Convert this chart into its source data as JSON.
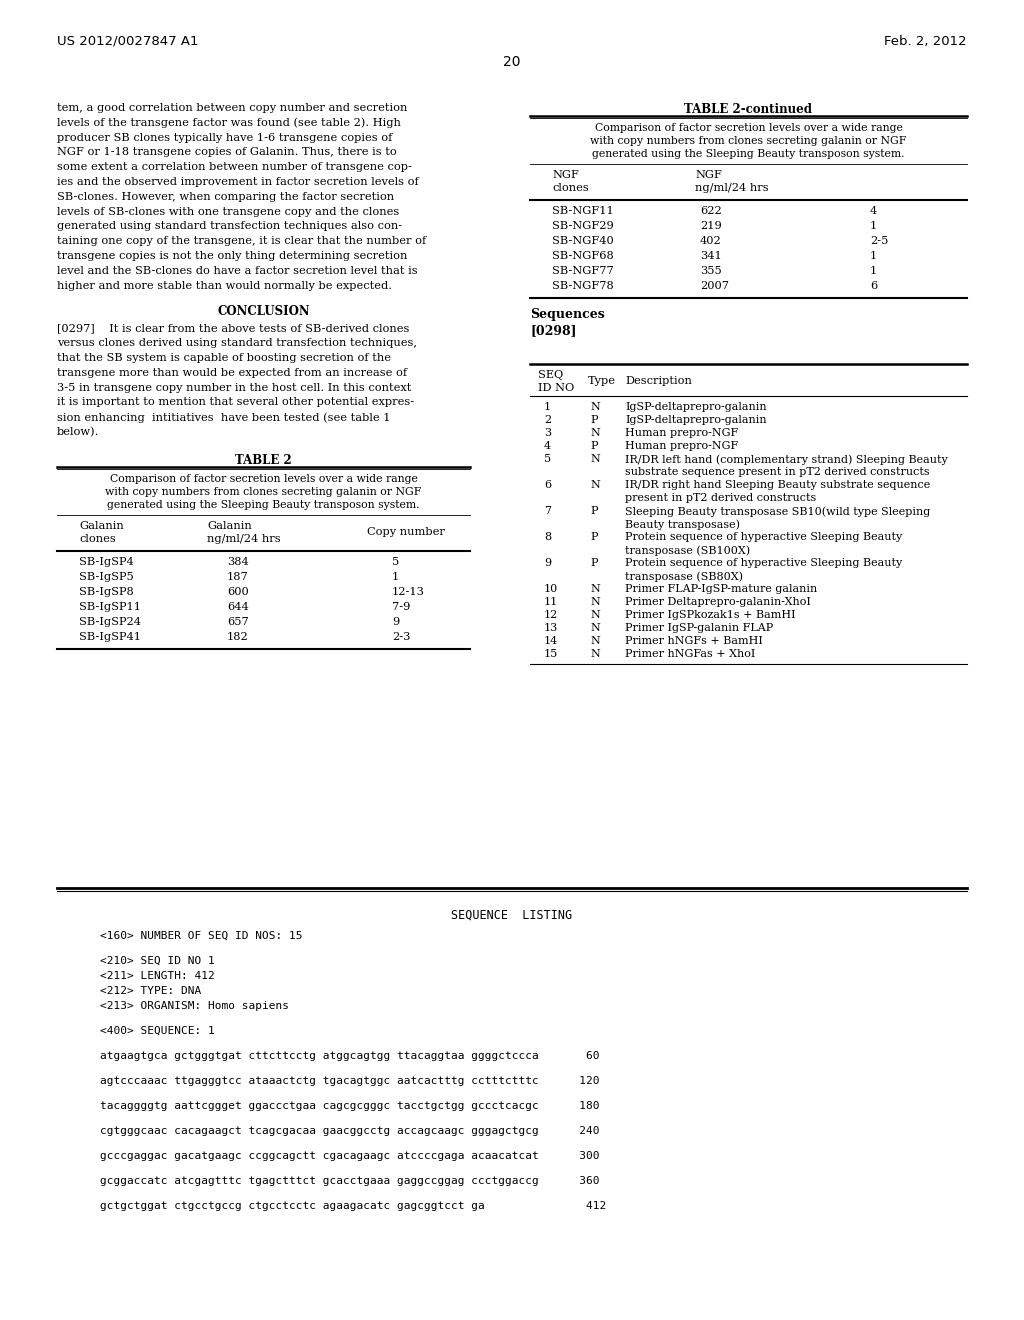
{
  "header_left": "US 2012/0027847 A1",
  "header_right": "Feb. 2, 2012",
  "page_number": "20",
  "bg_color": "#ffffff",
  "left_col_lines": [
    "tem, a good correlation between copy number and secretion",
    "levels of the transgene factor was found (see table 2). High",
    "producer SB clones typically have 1-6 transgene copies of",
    "NGF or 1-18 transgene copies of Galanin. Thus, there is to",
    "some extent a correlation between number of transgene cop-",
    "ies and the observed improvement in factor secretion levels of",
    "SB-clones. However, when comparing the factor secretion",
    "levels of SB-clones with one transgene copy and the clones",
    "generated using standard transfection techniques also con-",
    "taining one copy of the transgene, it is clear that the number of",
    "transgene copies is not the only thing determining secretion",
    "level and the SB-clones do have a factor secretion level that is",
    "higher and more stable than would normally be expected."
  ],
  "conclusion_title": "CONCLUSION",
  "conclusion_lines": [
    "[0297]    It is clear from the above tests of SB-derived clones",
    "versus clones derived using standard transfection techniques,",
    "that the SB system is capable of boosting secretion of the",
    "transgene more than would be expected from an increase of",
    "3-5 in transgene copy number in the host cell. In this context",
    "it is important to mention that several other potential expres-",
    "sion enhancing  intitiatives  have been tested (see table 1",
    "below)."
  ],
  "table2_title": "TABLE 2",
  "table2_caption_lines": [
    "Comparison of factor secretion levels over a wide range",
    "with copy numbers from clones secreting galanin or NGF",
    "generated using the Sleeping Beauty transposon system."
  ],
  "table2_col1": "Galanin",
  "table2_col1b": "clones",
  "table2_col2": "Galanin",
  "table2_col2b": "ng/ml/24 hrs",
  "table2_col3": "Copy number",
  "table2_data": [
    [
      "SB-IgSP4",
      "384",
      "5"
    ],
    [
      "SB-IgSP5",
      "187",
      "1"
    ],
    [
      "SB-IgSP8",
      "600",
      "12-13"
    ],
    [
      "SB-IgSP11",
      "644",
      "7-9"
    ],
    [
      "SB-IgSP24",
      "657",
      "9"
    ],
    [
      "SB-IgSP41",
      "182",
      "2-3"
    ]
  ],
  "table2cont_title": "TABLE 2-continued",
  "table2cont_caption_lines": [
    "Comparison of factor secretion levels over a wide range",
    "with copy numbers from clones secreting galanin or NGF",
    "generated using the Sleeping Beauty transposon system."
  ],
  "table2cont_col1": "NGF",
  "table2cont_col1b": "clones",
  "table2cont_col2": "NGF",
  "table2cont_col2b": "ng/ml/24 hrs",
  "table2cont_data": [
    [
      "SB-NGF11",
      "622",
      "4"
    ],
    [
      "SB-NGF29",
      "219",
      "1"
    ],
    [
      "SB-NGF40",
      "402",
      "2-5"
    ],
    [
      "SB-NGF68",
      "341",
      "1"
    ],
    [
      "SB-NGF77",
      "355",
      "1"
    ],
    [
      "SB-NGF78",
      "2007",
      "6"
    ]
  ],
  "sequences_label": "Sequences",
  "sequences_para": "[0298]",
  "seq_table_data": [
    [
      "1",
      "N",
      "IgSP-deltaprepro-galanin",
      ""
    ],
    [
      "2",
      "P",
      "IgSP-deltaprepro-galanin",
      ""
    ],
    [
      "3",
      "N",
      "Human prepro-NGF",
      ""
    ],
    [
      "4",
      "P",
      "Human prepro-NGF",
      ""
    ],
    [
      "5",
      "N",
      "IR/DR left hand (complementary strand) Sleeping Beauty",
      "substrate sequence present in pT2 derived constructs"
    ],
    [
      "6",
      "N",
      "IR/DR right hand Sleeping Beauty substrate sequence",
      "present in pT2 derived constructs"
    ],
    [
      "7",
      "P",
      "Sleeping Beauty transposase SB10(wild type Sleeping",
      "Beauty transposase)"
    ],
    [
      "8",
      "P",
      "Protein sequence of hyperactive Sleeping Beauty",
      "transposase (SB100X)"
    ],
    [
      "9",
      "P",
      "Protein sequence of hyperactive Sleeping Beauty",
      "transposase (SB80X)"
    ],
    [
      "10",
      "N",
      "Primer FLAP-IgSP-mature galanin",
      ""
    ],
    [
      "11",
      "N",
      "Primer Deltaprepro-galanin-XhoI",
      ""
    ],
    [
      "12",
      "N",
      "Primer IgSPkozak1s + BamHI",
      ""
    ],
    [
      "13",
      "N",
      "Primer IgSP-galanin FLAP",
      ""
    ],
    [
      "14",
      "N",
      "Primer hNGFs + BamHI",
      ""
    ],
    [
      "15",
      "N",
      "Primer hNGFas + XhoI",
      ""
    ]
  ],
  "seq_listing_title": "SEQUENCE  LISTING",
  "seq_listing_lines": [
    "<160> NUMBER OF SEQ ID NOS: 15",
    "",
    "<210> SEQ ID NO 1",
    "<211> LENGTH: 412",
    "<212> TYPE: DNA",
    "<213> ORGANISM: Homo sapiens",
    "",
    "<400> SEQUENCE: 1",
    "",
    "atgaagtgca gctgggtgat cttcttcctg atggcagtgg ttacaggtaa ggggctccca       60",
    "",
    "agtcccaaac ttgagggtcc ataaactctg tgacagtggc aatcactttg cctttctttc      120",
    "",
    "tacaggggtg aattcggget ggaccctgaa cagcgcgggc tacctgctgg gccctcacgc      180",
    "",
    "cgtgggcaac cacagaagct tcagcgacaa gaacggcctg accagcaagc gggagctgcg      240",
    "",
    "gcccgaggac gacatgaagc ccggcagctt cgacagaagc atccccgaga acaacatcat      300",
    "",
    "gcggaccatc atcgagtttc tgagctttct gcacctgaaa gaggccggag ccctggaccg      360",
    "",
    "gctgctggat ctgcctgccg ctgcctcctc agaagacatc gagcggtcct ga               412"
  ]
}
